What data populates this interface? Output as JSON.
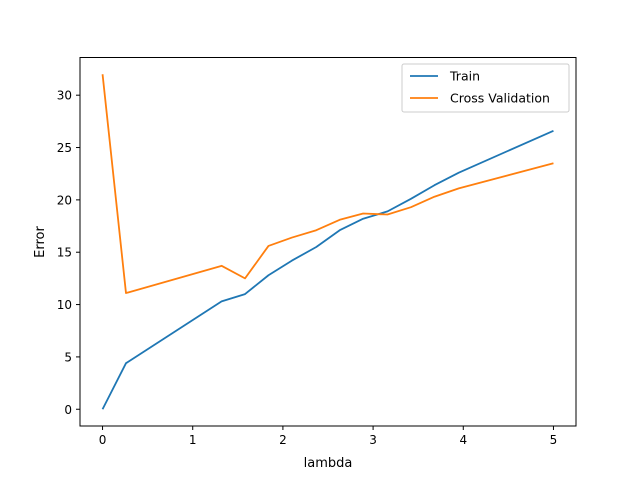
{
  "chart_data": {
    "type": "line",
    "title": "",
    "xlabel": "lambda",
    "ylabel": "Error",
    "xlim": [
      -0.25,
      5.25
    ],
    "ylim": [
      -1.6,
      33.6
    ],
    "x_ticks": [
      0,
      1,
      2,
      3,
      4,
      5
    ],
    "y_ticks": [
      0,
      5,
      10,
      15,
      20,
      25,
      30
    ],
    "grid": false,
    "legend_position": "top-right",
    "series": [
      {
        "name": "Train",
        "color": "#1f77b4",
        "x": [
          0,
          0.26,
          1.32,
          1.58,
          1.84,
          2.1,
          2.37,
          2.63,
          2.89,
          3.16,
          3.42,
          3.68,
          3.95,
          5.0
        ],
        "y": [
          0.0,
          4.4,
          10.3,
          11.0,
          12.8,
          14.2,
          15.5,
          17.1,
          18.2,
          18.9,
          20.1,
          21.4,
          22.6,
          26.6
        ]
      },
      {
        "name": "Cross Validation",
        "color": "#ff7f0e",
        "x": [
          0,
          0.26,
          1.32,
          1.58,
          1.84,
          2.1,
          2.37,
          2.63,
          2.89,
          3.16,
          3.42,
          3.68,
          3.95,
          5.0
        ],
        "y": [
          32.0,
          11.1,
          13.7,
          12.5,
          15.6,
          16.4,
          17.1,
          18.1,
          18.7,
          18.6,
          19.3,
          20.3,
          21.1,
          23.5
        ]
      }
    ]
  }
}
